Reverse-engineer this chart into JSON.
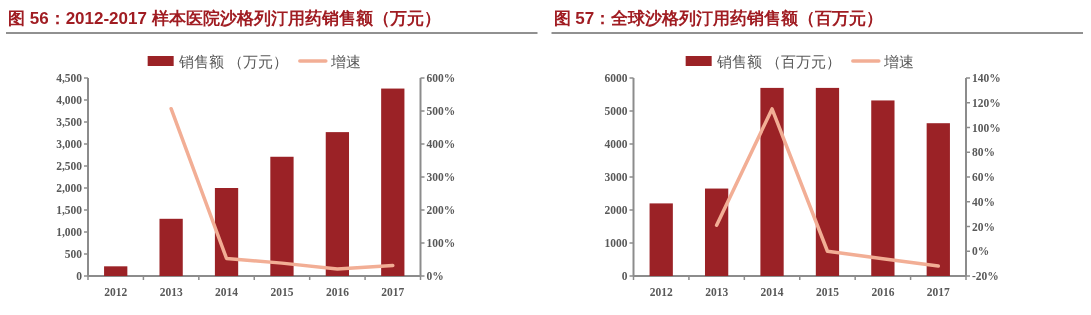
{
  "chart_data": [
    {
      "type": "bar",
      "title": "图 56：2012-2017 样本医院沙格列汀用药销售额（万元）",
      "legend": "top",
      "categories": [
        "2012",
        "2013",
        "2014",
        "2015",
        "2016",
        "2017"
      ],
      "series": [
        {
          "name": "销售额 （万元）",
          "color": "#9b2226",
          "values": [
            220,
            1300,
            2000,
            2710,
            3270,
            4260
          ]
        },
        {
          "name": "增速",
          "color": "#f2ae95",
          "type": "line",
          "axis": "y2",
          "values": [
            null,
            507,
            53,
            39,
            21,
            32
          ]
        }
      ],
      "ylim": [
        0,
        4500
      ],
      "yticks": [
        0,
        500,
        {
          "value": 1000,
          "label": "1,000"
        },
        {
          "value": 1500,
          "label": "1,500"
        },
        {
          "value": 2000,
          "label": "2,000"
        },
        {
          "value": 2500,
          "label": "2,500"
        },
        {
          "value": 3000,
          "label": "3,000"
        },
        {
          "value": 3500,
          "label": "3,500"
        },
        {
          "value": 4000,
          "label": "4,000"
        },
        {
          "value": 4500,
          "label": "4,500"
        }
      ],
      "y2lim": [
        0,
        600
      ],
      "y2ticks": [
        {
          "value": 0,
          "label": "0%"
        },
        {
          "value": 100,
          "label": "100%"
        },
        {
          "value": 200,
          "label": "200%"
        },
        {
          "value": 300,
          "label": "300%"
        },
        {
          "value": 400,
          "label": "400%"
        },
        {
          "value": 500,
          "label": "500%"
        },
        {
          "value": 600,
          "label": "600%"
        }
      ]
    },
    {
      "type": "bar",
      "title": "图 57：全球沙格列汀用药销售额（百万元）",
      "legend": "top",
      "categories": [
        "2012",
        "2013",
        "2014",
        "2015",
        "2016",
        "2017"
      ],
      "series": [
        {
          "name": "销售额 （百万元）",
          "color": "#9b2226",
          "values": [
            2200,
            2650,
            5700,
            5700,
            5320,
            4630
          ]
        },
        {
          "name": "增速",
          "color": "#f2ae95",
          "type": "line",
          "axis": "y2",
          "values": [
            null,
            21,
            115,
            0,
            -6,
            -12
          ]
        }
      ],
      "ylim": [
        0,
        6000
      ],
      "yticks": [
        0,
        1000,
        2000,
        3000,
        4000,
        5000,
        6000
      ],
      "y2lim": [
        -20,
        140
      ],
      "y2ticks": [
        {
          "value": -20,
          "label": "-20%"
        },
        {
          "value": 0,
          "label": "0%"
        },
        {
          "value": 20,
          "label": "20%"
        },
        {
          "value": 40,
          "label": "40%"
        },
        {
          "value": 60,
          "label": "60%"
        },
        {
          "value": 80,
          "label": "80%"
        },
        {
          "value": 100,
          "label": "100%"
        },
        {
          "value": 120,
          "label": "120%"
        },
        {
          "value": 140,
          "label": "140%"
        }
      ]
    }
  ]
}
